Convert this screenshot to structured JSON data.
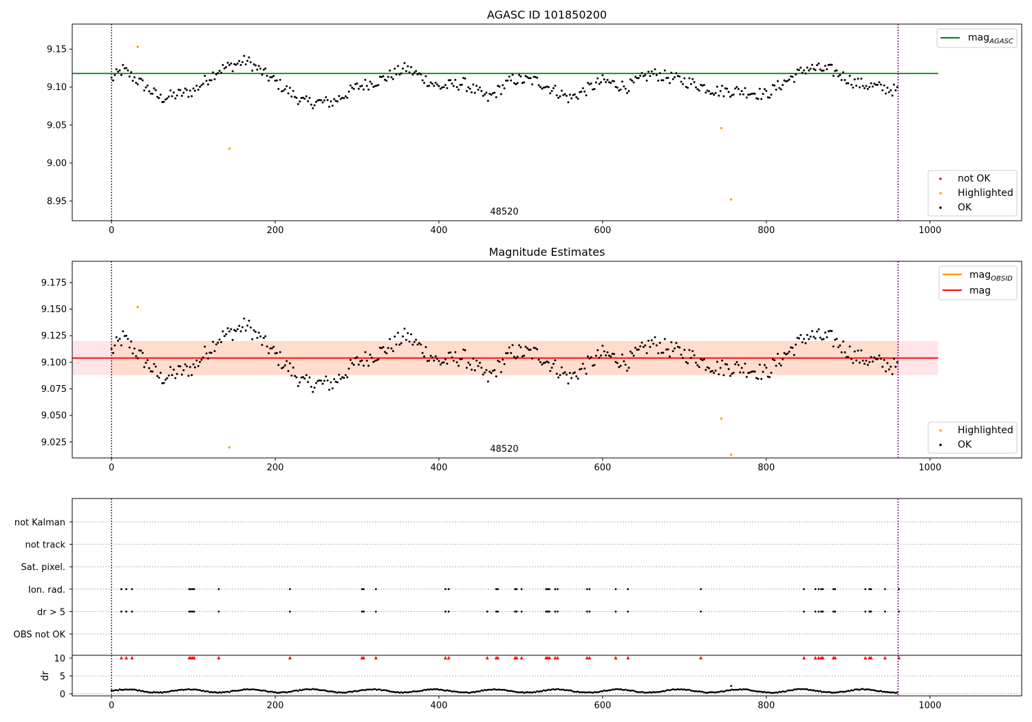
{
  "chart_data": [
    {
      "type": "scatter",
      "title": "AGASC ID 101850200",
      "xlabel": "",
      "ylabel": "",
      "xlim": [
        -48,
        1112
      ],
      "ylim": [
        8.924,
        9.183
      ],
      "xticks": [
        "0",
        "200",
        "400",
        "600",
        "800",
        "1000"
      ],
      "yticks": [
        "8.95",
        "9.00",
        "9.05",
        "9.10",
        "9.15"
      ],
      "obsid_label": "48520",
      "obsid_label_x": 480,
      "vlines": [
        0,
        961
      ],
      "hlines": [
        {
          "name": "mag_AGASC",
          "y": 9.118,
          "x_from": -48,
          "x_to": 1010,
          "color": "#008000"
        }
      ],
      "highlighted": [
        [
          32,
          9.153
        ],
        [
          144,
          9.019
        ],
        [
          745,
          9.046
        ],
        [
          757,
          8.952
        ]
      ],
      "ok_series": {
        "x_step": 2,
        "points": 481,
        "anchors": [
          [
            0,
            9.11
          ],
          [
            14,
            9.123
          ],
          [
            30,
            9.11
          ],
          [
            60,
            9.085
          ],
          [
            100,
            9.095
          ],
          [
            130,
            9.122
          ],
          [
            165,
            9.135
          ],
          [
            190,
            9.115
          ],
          [
            235,
            9.08
          ],
          [
            270,
            9.08
          ],
          [
            300,
            9.1
          ],
          [
            330,
            9.11
          ],
          [
            360,
            9.125
          ],
          [
            400,
            9.1
          ],
          [
            430,
            9.105
          ],
          [
            460,
            9.085
          ],
          [
            490,
            9.11
          ],
          [
            520,
            9.108
          ],
          [
            560,
            9.085
          ],
          [
            600,
            9.108
          ],
          [
            630,
            9.1
          ],
          [
            660,
            9.118
          ],
          [
            700,
            9.108
          ],
          [
            740,
            9.095
          ],
          [
            770,
            9.095
          ],
          [
            800,
            9.09
          ],
          [
            820,
            9.105
          ],
          [
            850,
            9.125
          ],
          [
            880,
            9.122
          ],
          [
            910,
            9.105
          ],
          [
            961,
            9.095
          ]
        ],
        "noise": 0.008
      },
      "legend": {
        "upper": [
          {
            "label": "mag",
            "sub": "AGASC",
            "color": "#008000"
          }
        ],
        "lower": [
          {
            "label": "not OK",
            "color": "#ff0000"
          },
          {
            "label": "Highlighted",
            "color": "#ffa500"
          },
          {
            "label": "OK",
            "color": "#000000"
          }
        ]
      }
    },
    {
      "type": "scatter",
      "title": "Magnitude Estimates",
      "xlabel": "",
      "ylabel": "",
      "xlim": [
        -48,
        1112
      ],
      "ylim": [
        9.01,
        9.195
      ],
      "xticks": [
        "0",
        "200",
        "400",
        "600",
        "800",
        "1000"
      ],
      "yticks": [
        "9.025",
        "9.050",
        "9.075",
        "9.100",
        "9.125",
        "9.150",
        "9.175"
      ],
      "obsid_label": "48520",
      "obsid_label_x": 480,
      "vlines": [
        0,
        961
      ],
      "hlines": [
        {
          "name": "mag",
          "y": 9.104,
          "x_from": -48,
          "x_to": 1010,
          "color": "#ff0000"
        }
      ],
      "bands": [
        {
          "y_from": 9.088,
          "y_to": 9.12,
          "x_from": -48,
          "x_to": 1010,
          "color": "#ffe4e8"
        },
        {
          "y_from": 9.088,
          "y_to": 9.12,
          "x_from": 0,
          "x_to": 961,
          "color": "#ffdccc"
        }
      ],
      "highlighted": [
        [
          32,
          9.152
        ],
        [
          144,
          9.02
        ],
        [
          745,
          9.047
        ],
        [
          757,
          9.013
        ]
      ],
      "ok_series": "same_as_panel_1",
      "legend": {
        "upper": [
          {
            "label": "mag",
            "sub": "OBSID",
            "color": "#ffa500"
          },
          {
            "label": "mag",
            "sub": "",
            "color": "#ff0000"
          }
        ],
        "lower": [
          {
            "label": "Highlighted",
            "color": "#ffa500"
          },
          {
            "label": "OK",
            "color": "#000000"
          }
        ]
      }
    },
    {
      "type": "scatter",
      "title": "",
      "xlabel": "",
      "ylabel": "dr",
      "xlim": [
        -48,
        1112
      ],
      "xticks": [
        "0",
        "200",
        "400",
        "600",
        "800",
        "1000"
      ],
      "flag_rows": [
        "not Kalman",
        "not track",
        "Sat. pixel.",
        "Ion. rad.",
        "dr > 5",
        "OBS not OK"
      ],
      "flag_events": {
        "Ion. rad.": [
          12,
          18,
          25,
          95,
          97,
          99,
          101,
          131,
          218,
          306,
          308,
          323,
          408,
          412,
          470,
          472,
          493,
          495,
          501,
          531,
          533,
          535,
          542,
          545,
          581,
          584,
          616,
          631,
          720,
          846,
          860,
          864,
          867,
          869,
          882,
          884,
          921,
          926,
          928,
          945,
          962
        ],
        "dr > 5": [
          12,
          18,
          25,
          95,
          97,
          99,
          101,
          131,
          218,
          306,
          308,
          323,
          408,
          412,
          459,
          470,
          472,
          493,
          495,
          501,
          531,
          533,
          535,
          542,
          545,
          581,
          584,
          616,
          631,
          720,
          846,
          860,
          864,
          867,
          869,
          882,
          884,
          921,
          926,
          928,
          945,
          962
        ]
      },
      "dr_ylim": [
        -0.5,
        11
      ],
      "dr_yticks": [
        "0",
        "5",
        "10"
      ],
      "dr_clip": 10,
      "dr_outliers": [
        12,
        18,
        25,
        95,
        97,
        99,
        101,
        131,
        218,
        306,
        308,
        323,
        408,
        412,
        459,
        470,
        472,
        493,
        495,
        501,
        531,
        533,
        535,
        542,
        545,
        581,
        584,
        616,
        631,
        720,
        846,
        860,
        864,
        867,
        869,
        882,
        884,
        921,
        926,
        928,
        945,
        962
      ],
      "dr_spike": [
        757,
        2.2
      ],
      "dr_baseline": {
        "mean": 0.8,
        "amplitude": 0.45,
        "period": 75
      },
      "vlines": [
        0,
        961
      ]
    }
  ]
}
